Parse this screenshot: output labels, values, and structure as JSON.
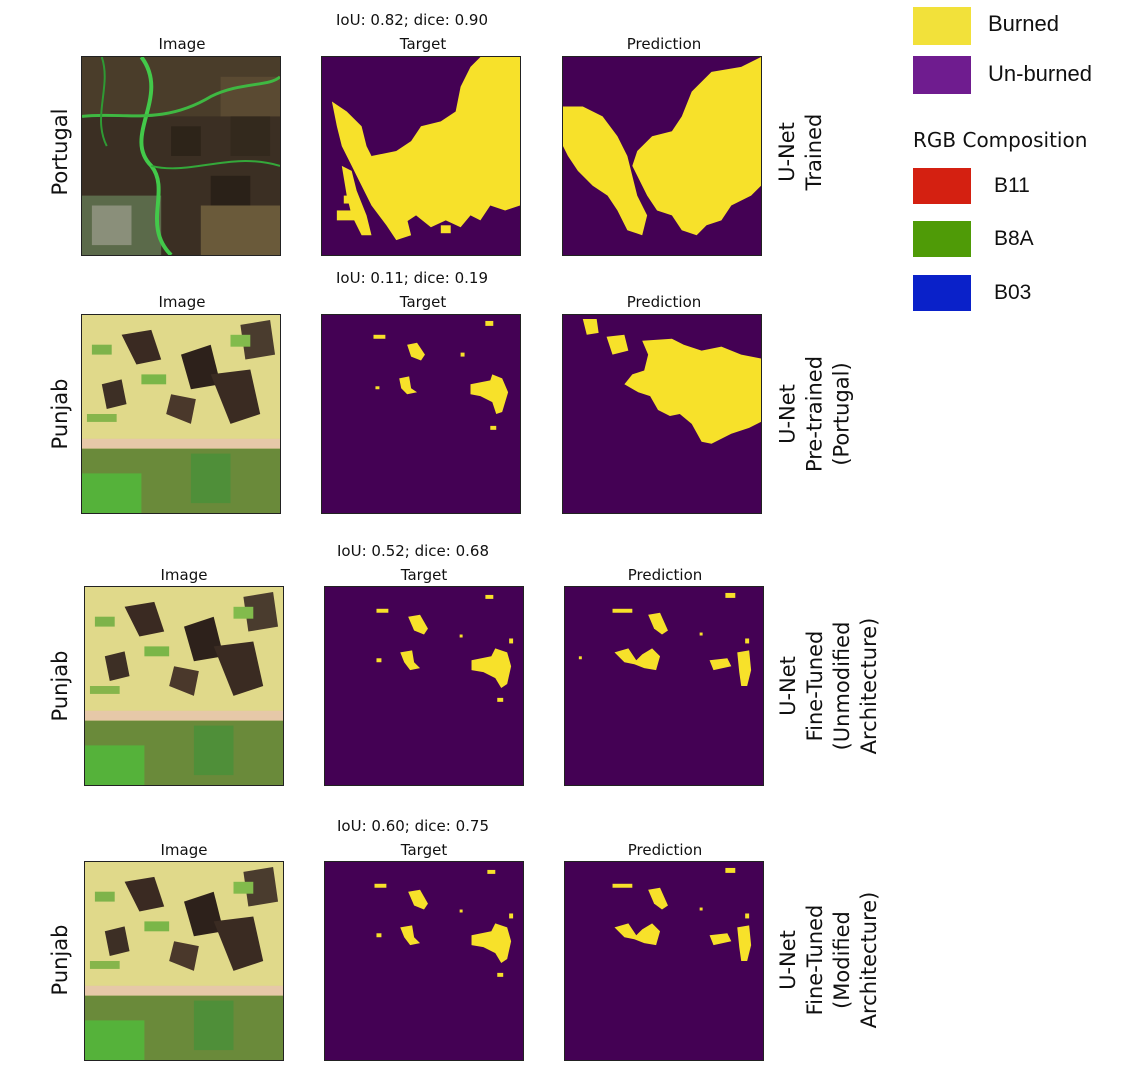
{
  "rows": [
    {
      "metric": "IoU: 0.82; dice: 0.90",
      "region": "Portugal",
      "titles": {
        "image": "Image",
        "target": "Target",
        "prediction": "Prediction"
      },
      "model_lines": [
        "U-Net",
        "Trained"
      ]
    },
    {
      "metric": "IoU: 0.11; dice: 0.19",
      "region": "Punjab",
      "titles": {
        "image": "Image",
        "target": "Target",
        "prediction": "Prediction"
      },
      "model_lines": [
        "U-Net",
        "Pre-trained",
        "(Portugal)"
      ]
    },
    {
      "metric": "IoU: 0.52; dice: 0.68",
      "region": "Punjab",
      "titles": {
        "image": "Image",
        "target": "Target",
        "prediction": "Prediction"
      },
      "model_lines": [
        "U-Net",
        "Fine-Tuned",
        "(Unmodified",
        "Architecture)"
      ]
    },
    {
      "metric": "IoU: 0.60; dice: 0.75",
      "region": "Punjab",
      "titles": {
        "image": "Image",
        "target": "Target",
        "prediction": "Prediction"
      },
      "model_lines": [
        "U-Net",
        "Fine-Tuned",
        "(Modified",
        "Architecture)"
      ]
    }
  ],
  "legend": {
    "classes": [
      {
        "label": "Burned",
        "color": "#f2e13a"
      },
      {
        "label": "Un-burned",
        "color": "#6f1c8f"
      }
    ],
    "rgb_heading": "RGB Composition",
    "bands": [
      {
        "label": "B11",
        "color": "#d42011"
      },
      {
        "label": "B8A",
        "color": "#4f9b07"
      },
      {
        "label": "B03",
        "color": "#0a21c9"
      }
    ]
  },
  "colors": {
    "burned": "#f7e12a",
    "unburned": "#440154"
  }
}
